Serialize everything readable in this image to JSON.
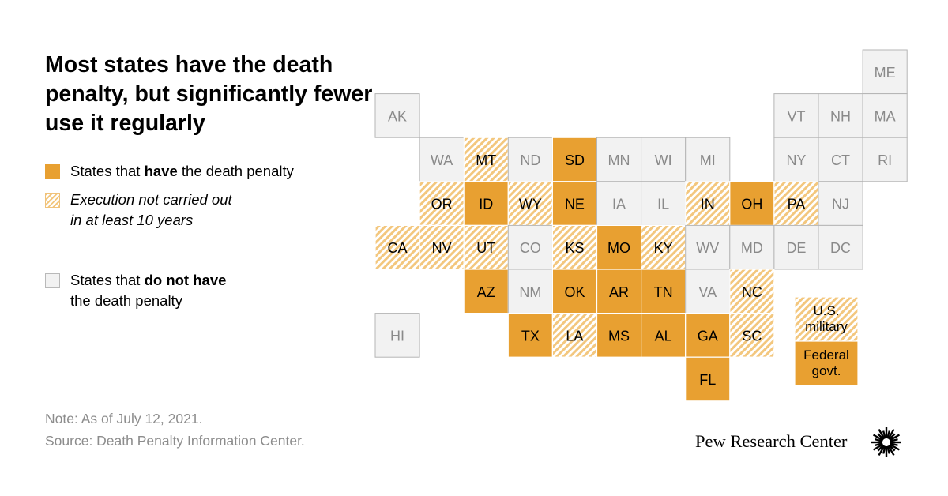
{
  "title": "Most states have the death penalty, but significantly fewer use it regularly",
  "legend": {
    "have": {
      "pre": "States that ",
      "bold": "have",
      "post": " the death penalty"
    },
    "not_carried": {
      "line1": "Execution not carried out",
      "line2": "in at least 10 years"
    },
    "not_have": {
      "pre": "States that ",
      "bold": "do not have",
      "line2": "the death penalty"
    }
  },
  "note": "Note: As of July 12, 2021.",
  "source": "Source: Death Penalty Information Center.",
  "brand": "Pew Research Center",
  "colors": {
    "have": "#E8A031",
    "hatch": "#F3C77E",
    "none_fill": "#f2f2f2",
    "none_border": "#b5b5b5",
    "none_text": "#8a8a8a"
  },
  "chart_data": {
    "type": "tile-grid-map",
    "categories": [
      "have",
      "not_carried",
      "not_have"
    ],
    "tiles": [
      {
        "label": "ME",
        "col": 11,
        "row": 0,
        "status": "not_have"
      },
      {
        "label": "AK",
        "col": 0,
        "row": 1,
        "status": "not_have"
      },
      {
        "label": "VT",
        "col": 9,
        "row": 1,
        "status": "not_have"
      },
      {
        "label": "NH",
        "col": 10,
        "row": 1,
        "status": "not_have"
      },
      {
        "label": "MA",
        "col": 11,
        "row": 1,
        "status": "not_have"
      },
      {
        "label": "WA",
        "col": 1,
        "row": 2,
        "status": "not_have"
      },
      {
        "label": "MT",
        "col": 2,
        "row": 2,
        "status": "not_carried"
      },
      {
        "label": "ND",
        "col": 3,
        "row": 2,
        "status": "not_have"
      },
      {
        "label": "SD",
        "col": 4,
        "row": 2,
        "status": "have"
      },
      {
        "label": "MN",
        "col": 5,
        "row": 2,
        "status": "not_have"
      },
      {
        "label": "WI",
        "col": 6,
        "row": 2,
        "status": "not_have"
      },
      {
        "label": "MI",
        "col": 7,
        "row": 2,
        "status": "not_have"
      },
      {
        "label": "NY",
        "col": 9,
        "row": 2,
        "status": "not_have"
      },
      {
        "label": "CT",
        "col": 10,
        "row": 2,
        "status": "not_have"
      },
      {
        "label": "RI",
        "col": 11,
        "row": 2,
        "status": "not_have"
      },
      {
        "label": "OR",
        "col": 1,
        "row": 3,
        "status": "not_carried"
      },
      {
        "label": "ID",
        "col": 2,
        "row": 3,
        "status": "have"
      },
      {
        "label": "WY",
        "col": 3,
        "row": 3,
        "status": "not_carried"
      },
      {
        "label": "NE",
        "col": 4,
        "row": 3,
        "status": "have"
      },
      {
        "label": "IA",
        "col": 5,
        "row": 3,
        "status": "not_have"
      },
      {
        "label": "IL",
        "col": 6,
        "row": 3,
        "status": "not_have"
      },
      {
        "label": "IN",
        "col": 7,
        "row": 3,
        "status": "not_carried"
      },
      {
        "label": "OH",
        "col": 8,
        "row": 3,
        "status": "have"
      },
      {
        "label": "PA",
        "col": 9,
        "row": 3,
        "status": "not_carried"
      },
      {
        "label": "NJ",
        "col": 10,
        "row": 3,
        "status": "not_have"
      },
      {
        "label": "CA",
        "col": 0,
        "row": 4,
        "status": "not_carried"
      },
      {
        "label": "NV",
        "col": 1,
        "row": 4,
        "status": "not_carried"
      },
      {
        "label": "UT",
        "col": 2,
        "row": 4,
        "status": "not_carried"
      },
      {
        "label": "CO",
        "col": 3,
        "row": 4,
        "status": "not_have"
      },
      {
        "label": "KS",
        "col": 4,
        "row": 4,
        "status": "not_carried"
      },
      {
        "label": "MO",
        "col": 5,
        "row": 4,
        "status": "have"
      },
      {
        "label": "KY",
        "col": 6,
        "row": 4,
        "status": "not_carried"
      },
      {
        "label": "WV",
        "col": 7,
        "row": 4,
        "status": "not_have"
      },
      {
        "label": "MD",
        "col": 8,
        "row": 4,
        "status": "not_have"
      },
      {
        "label": "DE",
        "col": 9,
        "row": 4,
        "status": "not_have"
      },
      {
        "label": "DC",
        "col": 10,
        "row": 4,
        "status": "not_have"
      },
      {
        "label": "AZ",
        "col": 2,
        "row": 5,
        "status": "have"
      },
      {
        "label": "NM",
        "col": 3,
        "row": 5,
        "status": "not_have"
      },
      {
        "label": "OK",
        "col": 4,
        "row": 5,
        "status": "have"
      },
      {
        "label": "AR",
        "col": 5,
        "row": 5,
        "status": "have"
      },
      {
        "label": "TN",
        "col": 6,
        "row": 5,
        "status": "have"
      },
      {
        "label": "VA",
        "col": 7,
        "row": 5,
        "status": "not_have"
      },
      {
        "label": "NC",
        "col": 8,
        "row": 5,
        "status": "not_carried"
      },
      {
        "label": "HI",
        "col": 0,
        "row": 6,
        "status": "not_have"
      },
      {
        "label": "TX",
        "col": 3,
        "row": 6,
        "status": "have"
      },
      {
        "label": "LA",
        "col": 4,
        "row": 6,
        "status": "not_carried"
      },
      {
        "label": "MS",
        "col": 5,
        "row": 6,
        "status": "have"
      },
      {
        "label": "AL",
        "col": 6,
        "row": 6,
        "status": "have"
      },
      {
        "label": "GA",
        "col": 7,
        "row": 6,
        "status": "have"
      },
      {
        "label": "SC",
        "col": 8,
        "row": 6,
        "status": "not_carried"
      },
      {
        "label": "FL",
        "col": 7,
        "row": 7,
        "status": "have"
      }
    ],
    "extras": [
      {
        "lines": [
          "U.S.",
          "military"
        ],
        "status": "not_carried",
        "slot": 0
      },
      {
        "lines": [
          "Federal",
          "govt."
        ],
        "status": "have",
        "slot": 1
      }
    ]
  }
}
